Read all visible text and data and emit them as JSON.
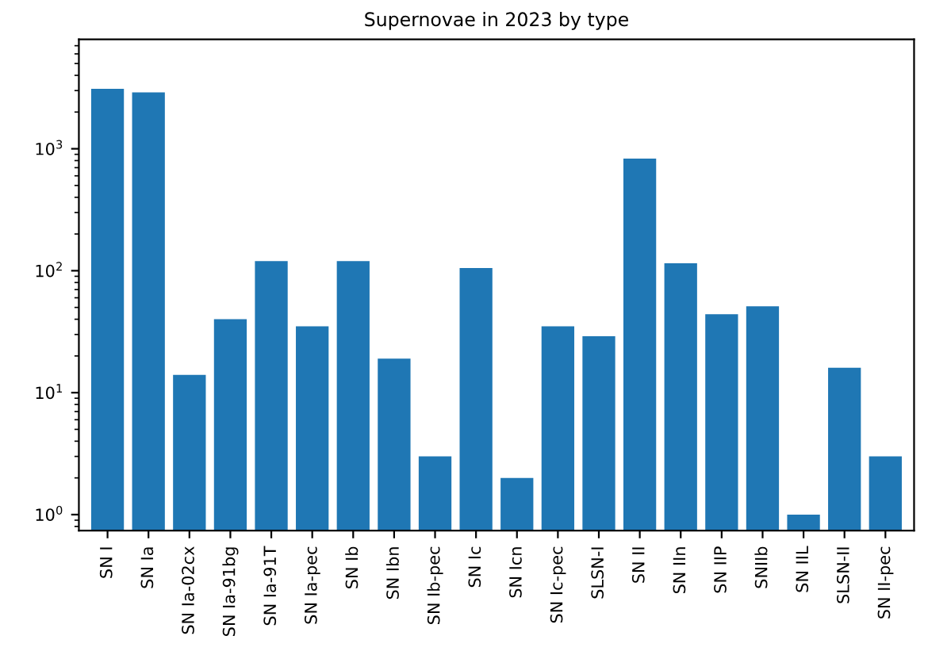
{
  "chart_data": {
    "type": "bar",
    "title": "Supernovae in 2023 by type",
    "categories": [
      "SN I",
      "SN Ia",
      "SN Ia-02cx",
      "SN Ia-91bg",
      "SN Ia-91T",
      "SN Ia-pec",
      "SN Ib",
      "SN Ibn",
      "SN Ib-pec",
      "SN Ic",
      "SN Icn",
      "SN Ic-pec",
      "SLSN-I",
      "SN II",
      "SN IIn",
      "SN IIP",
      "SNIIb",
      "SN IIL",
      "SLSN-II",
      "SN II-pec"
    ],
    "values": [
      3100,
      2900,
      14,
      40,
      120,
      35,
      120,
      19,
      3,
      105,
      2,
      35,
      29,
      830,
      115,
      44,
      51,
      1,
      16,
      3
    ],
    "color": "#1f77b4",
    "log": "y",
    "ylim": [
      0.74,
      7900
    ],
    "yticks": [
      {
        "value": 1,
        "label": "10$^{0}$"
      },
      {
        "value": 10,
        "label": "10$^{1}$"
      },
      {
        "value": 100,
        "label": "10$^{2}$"
      },
      {
        "value": 1000,
        "label": "10$^{3}$"
      }
    ],
    "grid": false
  }
}
